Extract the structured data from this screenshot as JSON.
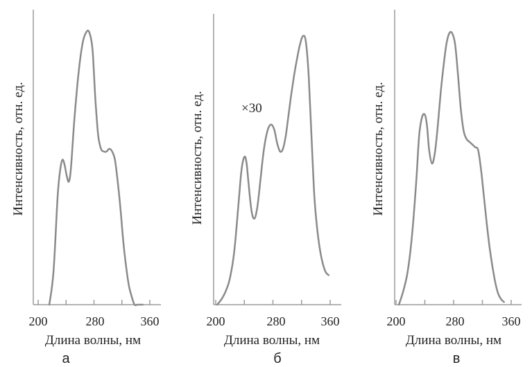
{
  "chart_data": [
    {
      "type": "line",
      "panel_label": "а",
      "xlabel": "Длина волны, нм",
      "ylabel": "Интенсивность, отн. ед.",
      "xlim": [
        200,
        360
      ],
      "ylim": [
        0,
        1
      ],
      "x_ticks": [
        200,
        280,
        360
      ],
      "x_tick_marks": [
        200,
        240,
        280,
        320,
        360
      ],
      "annotation": "",
      "line_color": "#8a8a8a",
      "series": [
        {
          "x": [
            216,
            222,
            228,
            232,
            235,
            238,
            241,
            244,
            247,
            252,
            258,
            264,
            270,
            274,
            278,
            282,
            286,
            290,
            294,
            298,
            302,
            306,
            310,
            314,
            318,
            322,
            326,
            330,
            334,
            338,
            342,
            346,
            350
          ],
          "y": [
            0.0,
            0.12,
            0.4,
            0.5,
            0.53,
            0.51,
            0.47,
            0.45,
            0.5,
            0.68,
            0.85,
            0.96,
            1.0,
            0.99,
            0.93,
            0.75,
            0.62,
            0.57,
            0.56,
            0.56,
            0.57,
            0.56,
            0.53,
            0.45,
            0.35,
            0.23,
            0.14,
            0.07,
            0.03,
            0.0,
            0.0,
            0.0,
            0.0
          ]
        }
      ]
    },
    {
      "type": "line",
      "panel_label": "б",
      "xlabel": "Длина волны, нм",
      "ylabel": "Интенсивность, отн. ед.",
      "xlim": [
        200,
        360
      ],
      "ylim": [
        0,
        1
      ],
      "x_ticks": [
        200,
        280,
        360
      ],
      "x_tick_marks": [
        200,
        240,
        280,
        320,
        360
      ],
      "annotation": "×30",
      "line_color": "#8a8a8a",
      "series": [
        {
          "x": [
            202,
            208,
            214,
            220,
            226,
            232,
            236,
            240,
            243,
            246,
            250,
            254,
            258,
            262,
            266,
            270,
            274,
            278,
            282,
            286,
            290,
            294,
            298,
            302,
            306,
            310,
            314,
            318,
            322,
            326,
            330,
            334,
            338,
            342,
            346,
            350,
            354,
            358
          ],
          "y": [
            0.0,
            0.02,
            0.05,
            0.1,
            0.2,
            0.38,
            0.5,
            0.55,
            0.53,
            0.45,
            0.35,
            0.32,
            0.36,
            0.45,
            0.55,
            0.62,
            0.66,
            0.67,
            0.65,
            0.6,
            0.57,
            0.58,
            0.63,
            0.71,
            0.79,
            0.86,
            0.92,
            0.97,
            1.0,
            0.98,
            0.85,
            0.62,
            0.4,
            0.28,
            0.2,
            0.15,
            0.12,
            0.11
          ]
        }
      ]
    },
    {
      "type": "line",
      "panel_label": "в",
      "xlabel": "Длина волны, нм",
      "ylabel": "Интенсивность, отн. ед.",
      "xlim": [
        200,
        360
      ],
      "ylim": [
        0,
        1
      ],
      "x_ticks": [
        200,
        280,
        360
      ],
      "x_tick_marks": [
        200,
        240,
        280,
        320,
        360
      ],
      "annotation": "",
      "line_color": "#8a8a8a",
      "series": [
        {
          "x": [
            204,
            210,
            216,
            222,
            228,
            232,
            236,
            240,
            243,
            246,
            250,
            254,
            258,
            262,
            266,
            270,
            274,
            278,
            282,
            286,
            290,
            294,
            298,
            302,
            306,
            310,
            314,
            318,
            322,
            326,
            330,
            334,
            338,
            342,
            346,
            350
          ],
          "y": [
            0.0,
            0.05,
            0.12,
            0.25,
            0.45,
            0.62,
            0.69,
            0.7,
            0.66,
            0.57,
            0.52,
            0.56,
            0.66,
            0.78,
            0.88,
            0.96,
            1.0,
            1.0,
            0.96,
            0.85,
            0.72,
            0.64,
            0.61,
            0.6,
            0.59,
            0.58,
            0.57,
            0.5,
            0.4,
            0.3,
            0.21,
            0.14,
            0.08,
            0.04,
            0.02,
            0.01
          ]
        }
      ]
    }
  ]
}
